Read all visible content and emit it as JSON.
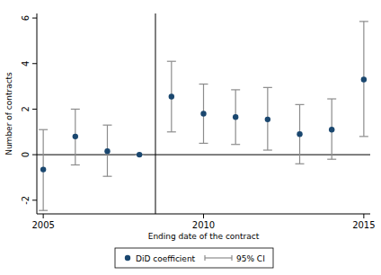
{
  "chart_data": {
    "type": "scatter",
    "x_label": "Ending date of the contract",
    "y_label": "Number of contracts",
    "x": [
      2005,
      2006,
      2007,
      2008,
      2009,
      2010,
      2011,
      2012,
      2013,
      2014,
      2015
    ],
    "series": [
      {
        "name": "DiD coefficient",
        "color": "#1a476f",
        "marker": "circle",
        "values": [
          -0.65,
          0.8,
          0.15,
          0.0,
          2.55,
          1.8,
          1.65,
          1.55,
          0.9,
          1.1,
          3.3
        ],
        "ci_low": [
          -2.45,
          -0.45,
          -0.95,
          0.0,
          1.0,
          0.5,
          0.45,
          0.2,
          -0.4,
          -0.2,
          0.8
        ],
        "ci_high": [
          1.1,
          2.0,
          1.3,
          0.0,
          4.1,
          3.1,
          2.85,
          2.95,
          2.2,
          2.45,
          5.85
        ],
        "ci_label": "95% CI",
        "ci_color": "#8c8c8c"
      }
    ],
    "reference_x": 2008.5,
    "reference_y": 0,
    "xlim": [
      2004.8,
      2015.2
    ],
    "xticks": [
      2005,
      2010,
      2015
    ],
    "ylim": [
      -2.6,
      6.2
    ],
    "yticks": [
      -2,
      0,
      2,
      4,
      6
    ],
    "grid": false,
    "legend": "bottom"
  }
}
